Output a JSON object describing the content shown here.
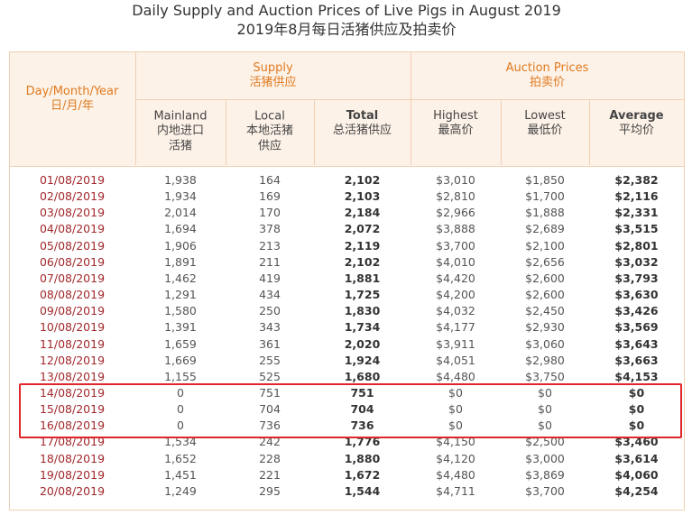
{
  "header": {
    "title": "Daily Supply and Auction Prices of Live Pigs in August 2019",
    "subtitle": "2019年8月每日活猪供应及拍卖价"
  },
  "table": {
    "date_header": {
      "en": "Day/Month/Year",
      "zh": "日/月/年"
    },
    "groups": [
      {
        "en": "Supply",
        "zh": "活猪供应"
      },
      {
        "en": "Auction Prices",
        "zh": "拍卖价"
      }
    ],
    "columns": [
      {
        "en": "Mainland",
        "zh": [
          "内地进口",
          "活猪"
        ]
      },
      {
        "en": "Local",
        "zh": [
          "本地活猪",
          "供应"
        ]
      },
      {
        "en": "Total",
        "zh": [
          "总活猪供应"
        ]
      },
      {
        "en": "Highest",
        "zh": [
          "最高价"
        ]
      },
      {
        "en": "Lowest",
        "zh": [
          "最低价"
        ]
      },
      {
        "en": "Average",
        "zh": [
          "平均价"
        ]
      }
    ],
    "rows": [
      [
        "01/08/2019",
        "1,938",
        "164",
        "2,102",
        "$3,010",
        "$1,850",
        "$2,382"
      ],
      [
        "02/08/2019",
        "1,934",
        "169",
        "2,103",
        "$2,810",
        "$1,700",
        "$2,116"
      ],
      [
        "03/08/2019",
        "2,014",
        "170",
        "2,184",
        "$2,966",
        "$1,888",
        "$2,331"
      ],
      [
        "04/08/2019",
        "1,694",
        "378",
        "2,072",
        "$3,888",
        "$2,689",
        "$3,515"
      ],
      [
        "05/08/2019",
        "1,906",
        "213",
        "2,119",
        "$3,700",
        "$2,100",
        "$2,801"
      ],
      [
        "06/08/2019",
        "1,891",
        "211",
        "2,102",
        "$4,010",
        "$2,656",
        "$3,032"
      ],
      [
        "07/08/2019",
        "1,462",
        "419",
        "1,881",
        "$4,420",
        "$2,600",
        "$3,793"
      ],
      [
        "08/08/2019",
        "1,291",
        "434",
        "1,725",
        "$4,200",
        "$2,600",
        "$3,630"
      ],
      [
        "09/08/2019",
        "1,580",
        "250",
        "1,830",
        "$4,032",
        "$2,450",
        "$3,426"
      ],
      [
        "10/08/2019",
        "1,391",
        "343",
        "1,734",
        "$4,177",
        "$2,930",
        "$3,569"
      ],
      [
        "11/08/2019",
        "1,659",
        "361",
        "2,020",
        "$3,911",
        "$3,060",
        "$3,643"
      ],
      [
        "12/08/2019",
        "1,669",
        "255",
        "1,924",
        "$4,051",
        "$2,980",
        "$3,663"
      ],
      [
        "13/08/2019",
        "1,155",
        "525",
        "1,680",
        "$4,480",
        "$3,750",
        "$4,153"
      ],
      [
        "14/08/2019",
        "0",
        "751",
        "751",
        "$0",
        "$0",
        "$0"
      ],
      [
        "15/08/2019",
        "0",
        "704",
        "704",
        "$0",
        "$0",
        "$0"
      ],
      [
        "16/08/2019",
        "0",
        "736",
        "736",
        "$0",
        "$0",
        "$0"
      ],
      [
        "17/08/2019",
        "1,534",
        "242",
        "1,776",
        "$4,150",
        "$2,500",
        "$3,460"
      ],
      [
        "18/08/2019",
        "1,652",
        "228",
        "1,880",
        "$4,120",
        "$3,000",
        "$3,614"
      ],
      [
        "19/08/2019",
        "1,451",
        "221",
        "1,672",
        "$4,480",
        "$3,869",
        "$4,060"
      ],
      [
        "20/08/2019",
        "1,249",
        "295",
        "1,544",
        "$4,711",
        "$3,700",
        "$4,254"
      ]
    ]
  }
}
